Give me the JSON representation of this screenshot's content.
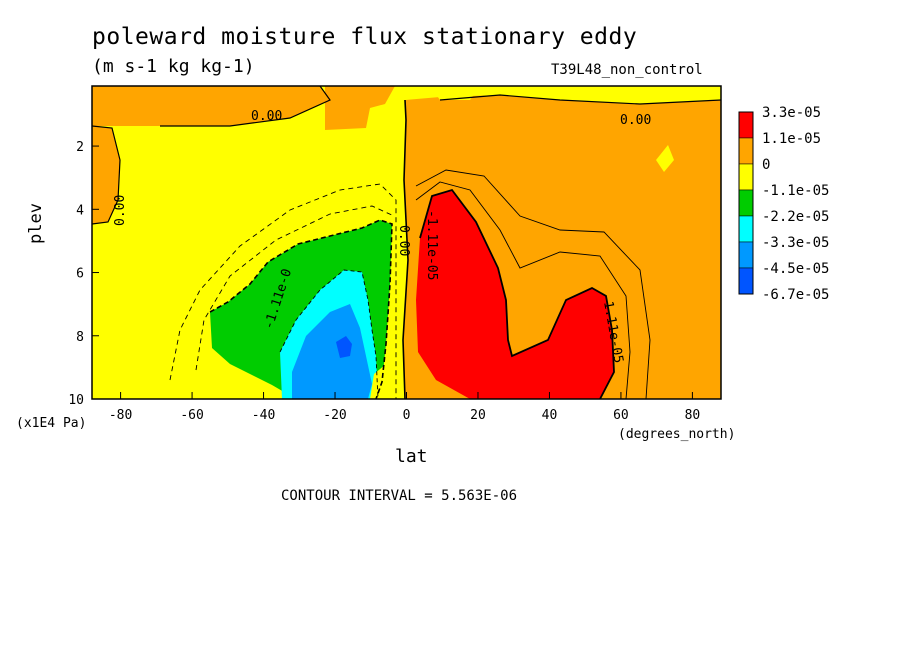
{
  "chart_data": {
    "type": "contour",
    "title": "poleward moisture flux stationary eddy",
    "units": "(m s-1 kg kg-1)",
    "run_label": "T39L48_non_control",
    "xlabel": "lat",
    "x_unit": "(degrees_north)",
    "ylabel": "plev",
    "y_unit": "(x1E4 Pa)",
    "xlim": [
      -88,
      88
    ],
    "ylim": [
      10,
      0.1
    ],
    "x_ticks": [
      "-80",
      "-60",
      "-40",
      "-20",
      "0",
      "20",
      "40",
      "60",
      "80"
    ],
    "y_ticks": [
      "2",
      "4",
      "6",
      "8",
      "10"
    ],
    "contour_interval_text": "CONTOUR INTERVAL = 5.563E-06",
    "contour_labels": [
      "0.00",
      "0.00",
      "0.00",
      "0.00",
      "-1.11e-0",
      "-1.11e-05",
      "1.11e-05"
    ],
    "colorbar": {
      "levels": [
        "3.3e-05",
        "1.1e-05",
        "0",
        "-1.1e-05",
        "-2.2e-05",
        "-3.3e-05",
        "-4.5e-05",
        "-6.7e-05"
      ],
      "colors": [
        "#ff0000",
        "#ffa500",
        "#ffff00",
        "#00cc00",
        "#00ffff",
        "#0099ff",
        "#0055ff"
      ]
    },
    "regions": [
      {
        "level": "3.3e-05",
        "description": "NH maximum centered near 10N, 5-9 (x1E4 Pa)"
      },
      {
        "level": "3.3e-05",
        "description": "NH maximum near 50N, 8-10 (x1E4 Pa)"
      },
      {
        "level": "-6.7e-05",
        "description": "SH minimum near 20S, 8-10 (x1E4 Pa)"
      }
    ]
  }
}
